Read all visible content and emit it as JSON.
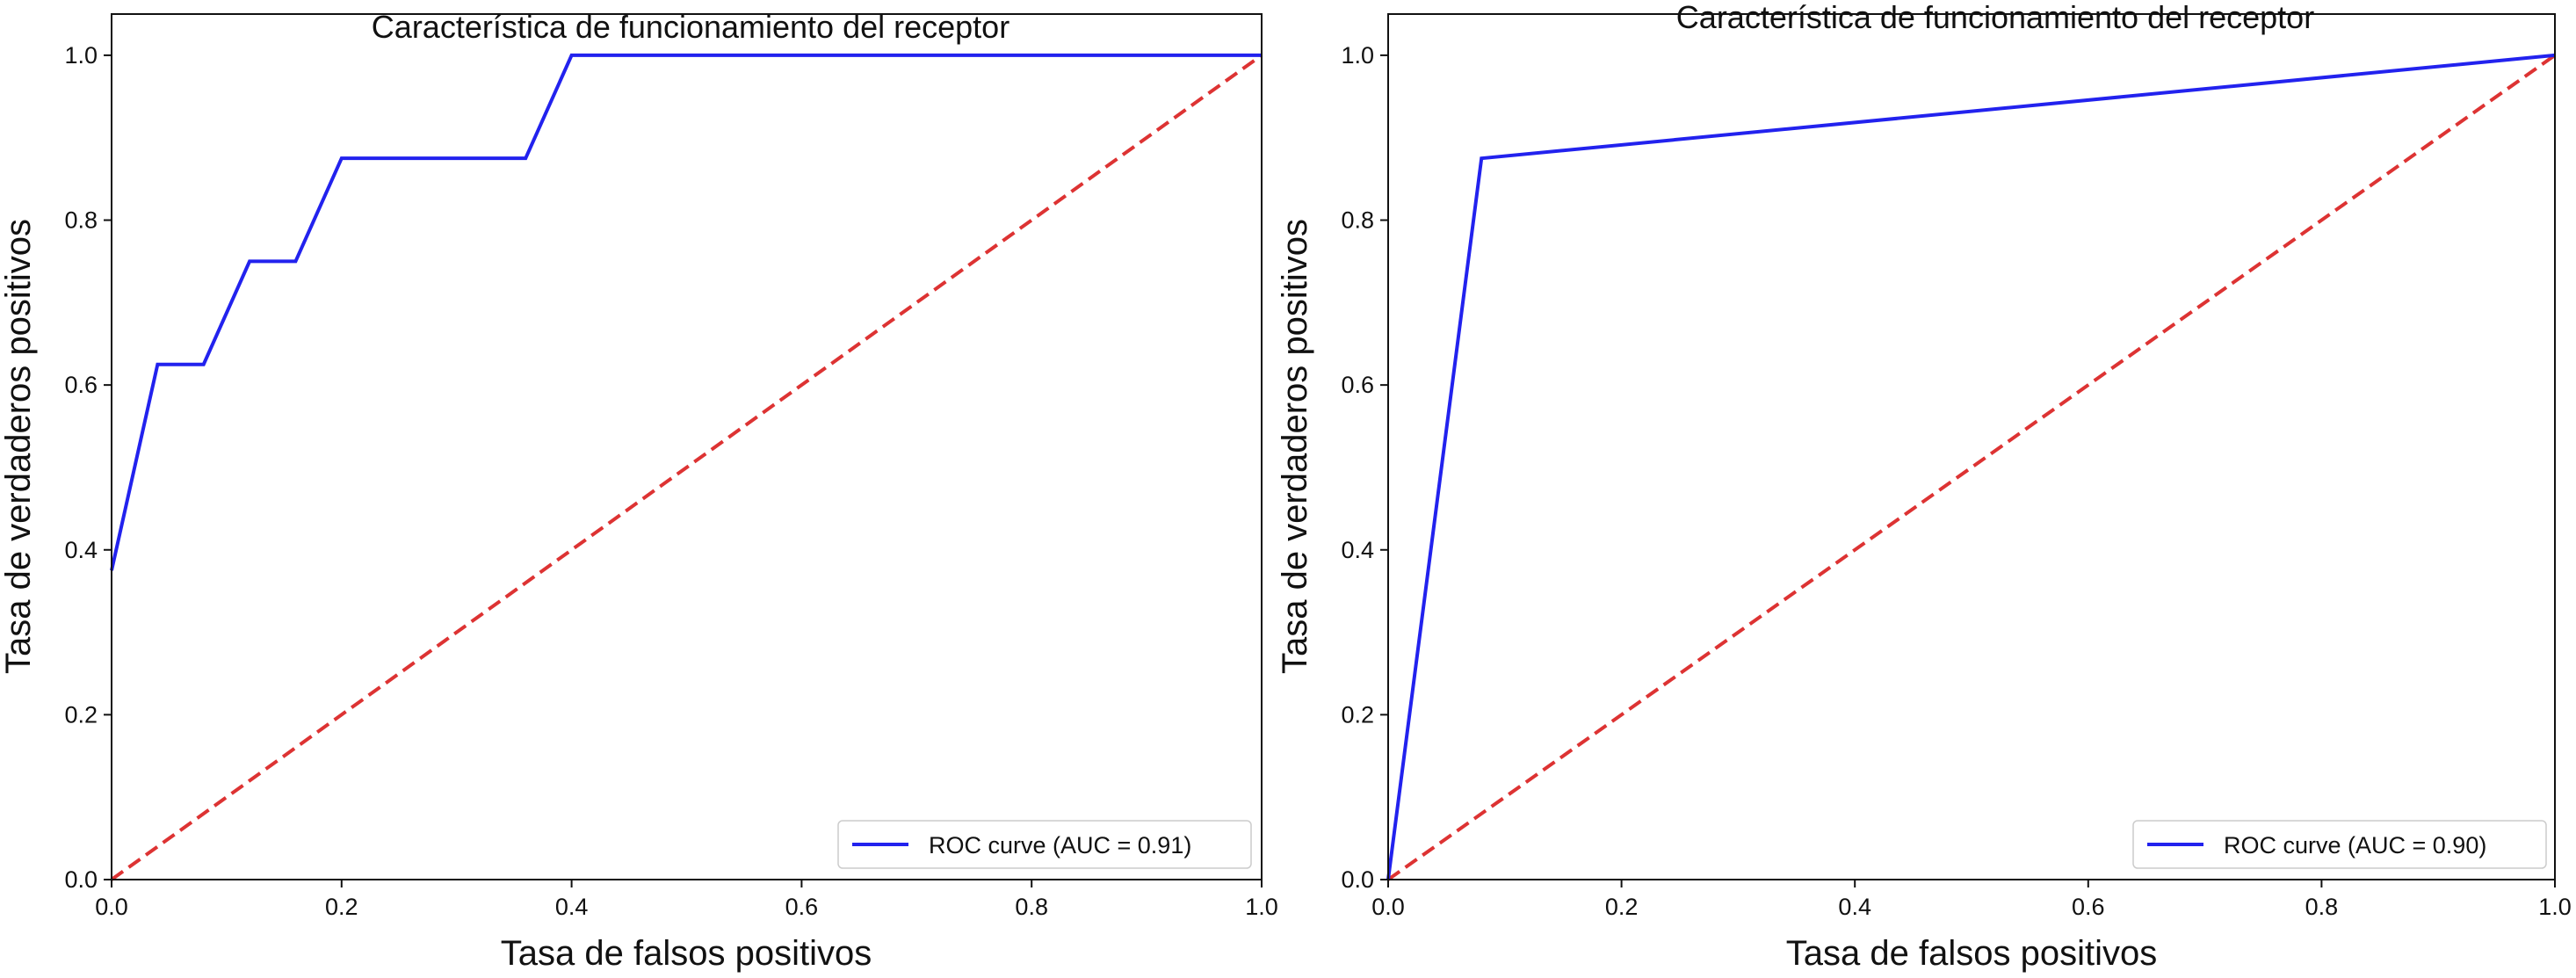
{
  "chart_data": [
    {
      "type": "line",
      "title": "Característica de funcionamiento del receptor",
      "xlabel": "Tasa de falsos positivos",
      "ylabel": "Tasa de verdaderos positivos",
      "xlim": [
        0,
        1
      ],
      "ylim": [
        0,
        1.05
      ],
      "xticks": [
        "0.0",
        "0.2",
        "0.4",
        "0.6",
        "0.8",
        "1.0"
      ],
      "yticks": [
        "0.0",
        "0.2",
        "0.4",
        "0.6",
        "0.8",
        "1.0"
      ],
      "grid": false,
      "legend_position": "bottom-right",
      "series": [
        {
          "name": "ROC curve (AUC = 0.91)",
          "color": "#2222ee",
          "x": [
            0.0,
            0.04,
            0.08,
            0.12,
            0.16,
            0.2,
            0.36,
            0.4,
            1.0
          ],
          "y": [
            0.375,
            0.625,
            0.625,
            0.75,
            0.75,
            0.875,
            0.875,
            1.0,
            1.0
          ]
        }
      ],
      "reference_line": {
        "color": "#dd3333",
        "x": [
          0,
          1
        ],
        "y": [
          0,
          1
        ]
      }
    },
    {
      "type": "line",
      "title": "Característica de funcionamiento del receptor",
      "xlabel": "Tasa de falsos positivos",
      "ylabel": "Tasa de verdaderos positivos",
      "xlim": [
        0,
        1
      ],
      "ylim": [
        0,
        1.05
      ],
      "xticks": [
        "0.0",
        "0.2",
        "0.4",
        "0.6",
        "0.8",
        "1.0"
      ],
      "yticks": [
        "0.0",
        "0.2",
        "0.4",
        "0.6",
        "0.8",
        "1.0"
      ],
      "grid": false,
      "legend_position": "bottom-right",
      "series": [
        {
          "name": "ROC curve (AUC = 0.90)",
          "color": "#2222ee",
          "x": [
            0.0,
            0.08,
            1.0
          ],
          "y": [
            0.0,
            0.875,
            1.0
          ]
        }
      ],
      "reference_line": {
        "color": "#dd3333",
        "x": [
          0,
          1
        ],
        "y": [
          0,
          1
        ]
      }
    }
  ]
}
